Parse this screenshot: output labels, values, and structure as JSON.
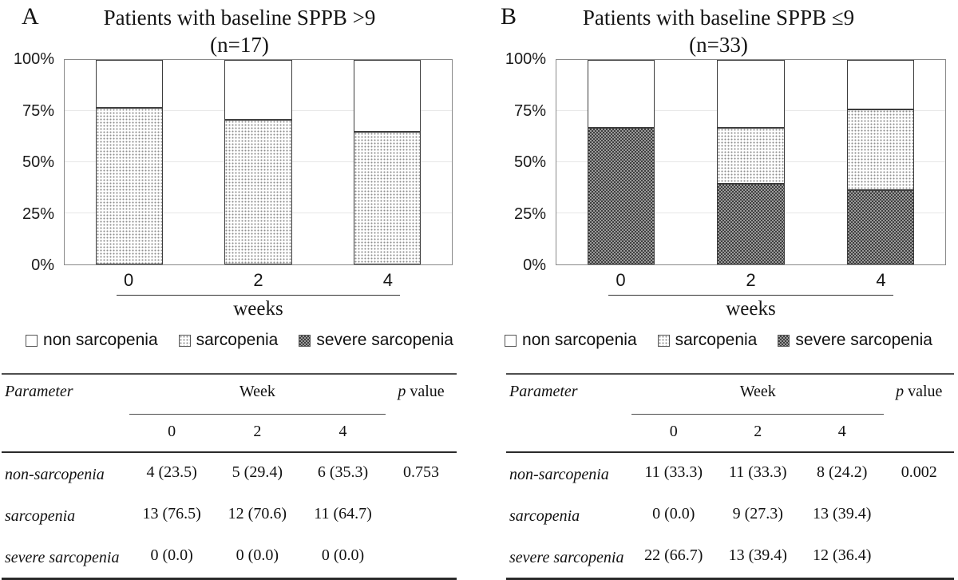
{
  "panels": [
    {
      "label": "A",
      "title": "Patients with baseline SPPB >9",
      "subtitle": "(n=17)",
      "xlabel": "weeks",
      "legend": [
        {
          "label": "non sarcopenia",
          "pattern": "plain"
        },
        {
          "label": "sarcopenia",
          "pattern": "dots"
        },
        {
          "label": "severe sarcopenia",
          "pattern": "checker"
        }
      ],
      "table": {
        "header": {
          "parameter": "Parameter",
          "week": "Week",
          "p": "p",
          "value": "value"
        },
        "subheader": [
          "0",
          "2",
          "4"
        ],
        "rows": [
          {
            "label": "non-sarcopenia",
            "values": [
              "4 (23.5)",
              "5 (29.4)",
              "6 (35.3)"
            ],
            "p": "0.753"
          },
          {
            "label": "sarcopenia",
            "values": [
              "13 (76.5)",
              "12 (70.6)",
              "11 (64.7)"
            ],
            "p": ""
          },
          {
            "label": "severe sarcopenia",
            "values": [
              "0 (0.0)",
              "0 (0.0)",
              "0 (0.0)"
            ],
            "p": ""
          }
        ]
      }
    },
    {
      "label": "B",
      "title": "Patients with baseline SPPB ≤9",
      "subtitle": "(n=33)",
      "xlabel": "weeks",
      "legend": [
        {
          "label": "non sarcopenia",
          "pattern": "plain"
        },
        {
          "label": "sarcopenia",
          "pattern": "dots"
        },
        {
          "label": "severe sarcopenia",
          "pattern": "checker"
        }
      ],
      "table": {
        "header": {
          "parameter": "Parameter",
          "week": "Week",
          "p": "p",
          "value": "value"
        },
        "subheader": [
          "0",
          "2",
          "4"
        ],
        "rows": [
          {
            "label": "non-sarcopenia",
            "values": [
              "11 (33.3)",
              "11 (33.3)",
              "8 (24.2)"
            ],
            "p": "0.002"
          },
          {
            "label": "sarcopenia",
            "values": [
              "0 (0.0)",
              "9 (27.3)",
              "13 (39.4)"
            ],
            "p": ""
          },
          {
            "label": "severe sarcopenia",
            "values": [
              "22 (66.7)",
              "13 (39.4)",
              "12 (36.4)"
            ],
            "p": ""
          }
        ]
      }
    }
  ],
  "chart_data": [
    {
      "type": "bar",
      "stacked": true,
      "stack_order": "bottom-to-top",
      "title": "Patients with baseline SPPB >9 (n=17)",
      "categories": [
        "0",
        "2",
        "4"
      ],
      "series": [
        {
          "name": "severe sarcopenia",
          "pattern": "checker",
          "values": [
            0,
            0,
            0
          ]
        },
        {
          "name": "sarcopenia",
          "pattern": "dots",
          "values": [
            76.5,
            70.6,
            64.7
          ]
        },
        {
          "name": "non sarcopenia",
          "pattern": "plain",
          "values": [
            23.5,
            29.4,
            35.3
          ]
        }
      ],
      "xlabel": "weeks",
      "ylabel": "",
      "ylim": [
        0,
        100
      ],
      "yticks": [
        "0%",
        "25%",
        "50%",
        "75%",
        "100%"
      ],
      "gridlines": [
        25,
        50,
        75
      ],
      "legend_position": "bottom"
    },
    {
      "type": "bar",
      "stacked": true,
      "stack_order": "bottom-to-top",
      "title": "Patients with baseline SPPB ≤9 (n=33)",
      "categories": [
        "0",
        "2",
        "4"
      ],
      "series": [
        {
          "name": "severe sarcopenia",
          "pattern": "checker",
          "values": [
            66.7,
            39.4,
            36.4
          ]
        },
        {
          "name": "sarcopenia",
          "pattern": "dots",
          "values": [
            0,
            27.3,
            39.4
          ]
        },
        {
          "name": "non sarcopenia",
          "pattern": "plain",
          "values": [
            33.3,
            33.3,
            24.2
          ]
        }
      ],
      "xlabel": "weeks",
      "ylabel": "",
      "ylim": [
        0,
        100
      ],
      "yticks": [
        "0%",
        "25%",
        "50%",
        "75%",
        "100%"
      ],
      "gridlines": [
        25,
        50,
        75
      ],
      "legend_position": "bottom"
    }
  ],
  "palette": {
    "pattern_ink": "#3f3f3f",
    "checker_light": "#9a9a9a",
    "bar_border": "#3d3d3d",
    "plot_border": "#8a8a8a",
    "gridline": "#e7e7e7",
    "text": "#111111",
    "background": "#ffffff"
  }
}
